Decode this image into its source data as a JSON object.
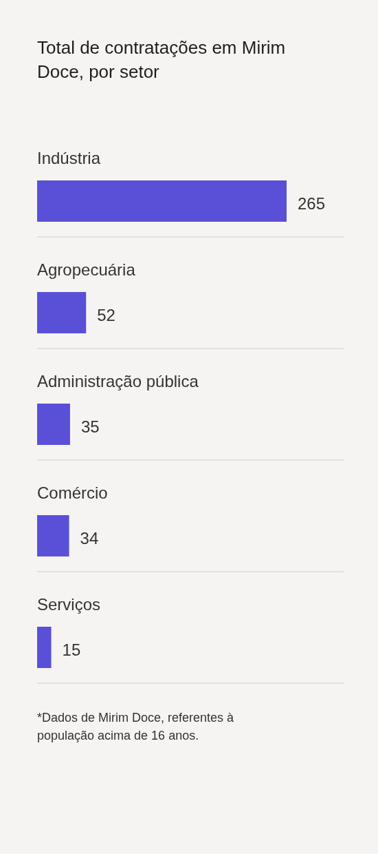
{
  "chart_data": {
    "type": "bar",
    "orientation": "horizontal",
    "title": "Total de contratações em Mirim Doce, por setor",
    "categories": [
      "Indústria",
      "Agropecuária",
      "Administração pública",
      "Comércio",
      "Serviços"
    ],
    "values": [
      265,
      52,
      35,
      34,
      15
    ],
    "color": "#5a50d8",
    "data_labels": true,
    "grid": false,
    "tick_labels": "y",
    "annotations": [
      "*Dados de Mirim Doce, referentes à população acima de 16 anos."
    ]
  }
}
